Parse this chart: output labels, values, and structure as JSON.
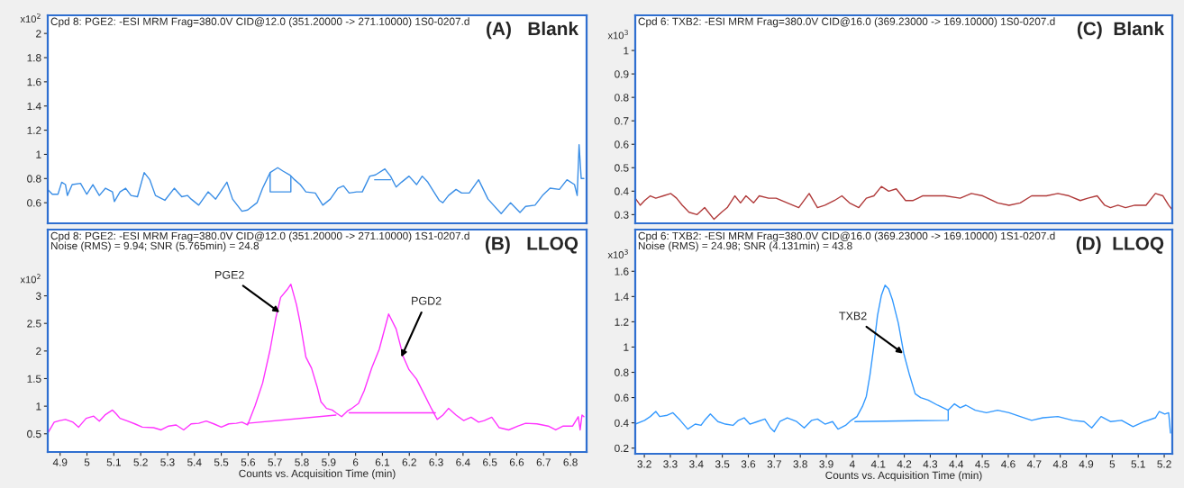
{
  "chart_data": [
    {
      "type": "line",
      "title": "(A)   Blank",
      "subtitle": "Cpd 8: PGE2: -ESI MRM Frag=380.0V CID@12.0 (351.20000 -> 271.10000) 1S0-0207.d",
      "ylabel": "x10$^{2}$",
      "xlim": [
        4.854,
        6.86
      ],
      "ylim": [
        0.43,
        2.15
      ],
      "yticks": [
        0.6,
        0.8,
        1,
        1.2,
        1.4,
        1.6,
        1.8,
        2
      ],
      "tick_labels": "y",
      "grid": false,
      "series": [
        {
          "color": "#3a8ee6",
          "x": [
            4.854,
            4.871,
            4.892,
            4.906,
            4.92,
            4.927,
            4.945,
            4.976,
            4.999,
            5.022,
            5.046,
            5.069,
            5.095,
            5.102,
            5.123,
            5.144,
            5.164,
            5.188,
            5.213,
            5.234,
            5.255,
            5.29,
            5.325,
            5.353,
            5.374,
            5.388,
            5.416,
            5.451,
            5.479,
            5.521,
            5.542,
            5.577,
            5.598,
            5.633,
            5.654,
            5.682,
            5.71,
            5.731,
            5.755,
            5.773,
            5.794,
            5.815,
            5.85,
            5.878,
            5.906,
            5.934,
            5.955,
            5.976,
            6.004,
            6.025,
            6.053,
            6.074,
            6.109,
            6.13,
            6.151,
            6.171,
            6.199,
            6.227,
            6.248,
            6.269,
            6.283,
            6.311,
            6.325,
            6.346,
            6.374,
            6.395,
            6.423,
            6.458,
            6.493,
            6.542,
            6.577,
            6.612,
            6.633,
            6.668,
            6.696,
            6.724,
            6.759,
            6.787,
            6.815,
            6.825,
            6.832,
            6.84,
            6.85
          ],
          "values": [
            0.71,
            0.67,
            0.67,
            0.77,
            0.75,
            0.66,
            0.75,
            0.76,
            0.67,
            0.75,
            0.66,
            0.72,
            0.69,
            0.61,
            0.69,
            0.72,
            0.66,
            0.65,
            0.85,
            0.79,
            0.66,
            0.62,
            0.72,
            0.65,
            0.66,
            0.63,
            0.58,
            0.69,
            0.63,
            0.77,
            0.63,
            0.53,
            0.54,
            0.6,
            0.72,
            0.85,
            0.89,
            0.86,
            0.83,
            0.79,
            0.75,
            0.69,
            0.68,
            0.58,
            0.63,
            0.72,
            0.74,
            0.68,
            0.69,
            0.69,
            0.82,
            0.83,
            0.88,
            0.82,
            0.73,
            0.77,
            0.82,
            0.75,
            0.82,
            0.77,
            0.72,
            0.62,
            0.6,
            0.66,
            0.71,
            0.68,
            0.68,
            0.79,
            0.63,
            0.51,
            0.6,
            0.52,
            0.57,
            0.58,
            0.66,
            0.72,
            0.71,
            0.79,
            0.75,
            0.66,
            1.08,
            0.8,
            0.8
          ]
        },
        {
          "color": "#3a8ee6",
          "x": [
            5.682,
            5.682,
            5.759,
            5.759
          ],
          "values": [
            0.85,
            0.69,
            0.69,
            0.82
          ]
        },
        {
          "color": "#3a8ee6",
          "x": [
            6.071,
            6.13
          ],
          "values": [
            0.79,
            0.79
          ]
        }
      ]
    },
    {
      "type": "line",
      "title": "(B)   LLOQ",
      "subtitle": "Cpd 8: PGE2: -ESI MRM Frag=380.0V CID@12.0 (351.20000 -> 271.10000) 1S1-0207.d\nNoise (RMS) = 9.94; SNR (5.765min) = 24.8",
      "ylabel": "x10$^{2}$",
      "xlabel": "Counts vs. Acquisition Time (min)",
      "xlim": [
        4.854,
        6.86
      ],
      "ylim": [
        0.17,
        4.2
      ],
      "xticks": [
        4.9,
        5,
        5.1,
        5.2,
        5.3,
        5.4,
        5.5,
        5.6,
        5.7,
        5.8,
        5.9,
        6,
        6.1,
        6.2,
        6.3,
        6.4,
        6.5,
        6.6,
        6.7,
        6.8
      ],
      "yticks": [
        0.5,
        1,
        1.5,
        2,
        2.5,
        3
      ],
      "grid": false,
      "annotations": [
        {
          "text": "PGE2",
          "x": 5.717,
          "y": 2.7
        },
        {
          "text": "PGD2",
          "x": 6.17,
          "y": 1.89
        }
      ],
      "series": [
        {
          "color": "#ff33ff",
          "x": [
            4.854,
            4.878,
            4.899,
            4.92,
            4.948,
            4.969,
            4.997,
            5.025,
            5.046,
            5.067,
            5.095,
            5.109,
            5.123,
            5.151,
            5.178,
            5.206,
            5.248,
            5.276,
            5.304,
            5.332,
            5.36,
            5.388,
            5.416,
            5.444,
            5.472,
            5.5,
            5.528,
            5.556,
            5.577,
            5.598,
            5.626,
            5.654,
            5.682,
            5.703,
            5.721,
            5.745,
            5.759,
            5.78,
            5.794,
            5.815,
            5.836,
            5.857,
            5.871,
            5.892,
            5.913,
            5.927,
            5.948,
            5.969,
            5.983,
            6.011,
            6.032,
            6.06,
            6.088,
            6.123,
            6.151,
            6.178,
            6.199,
            6.227,
            6.255,
            6.283,
            6.304,
            6.325,
            6.346,
            6.374,
            6.402,
            6.43,
            6.458,
            6.479,
            6.507,
            6.535,
            6.57,
            6.605,
            6.633,
            6.675,
            6.717,
            6.745,
            6.773,
            6.808,
            6.829,
            6.836,
            6.843,
            6.85
          ],
          "values": [
            0.51,
            0.71,
            0.74,
            0.76,
            0.71,
            0.62,
            0.78,
            0.82,
            0.73,
            0.84,
            0.93,
            0.86,
            0.78,
            0.73,
            0.68,
            0.62,
            0.61,
            0.57,
            0.64,
            0.66,
            0.57,
            0.68,
            0.69,
            0.73,
            0.68,
            0.62,
            0.68,
            0.69,
            0.71,
            0.66,
            1.01,
            1.42,
            2.03,
            2.6,
            2.97,
            3.11,
            3.21,
            2.84,
            2.5,
            1.89,
            1.69,
            1.35,
            1.08,
            0.96,
            0.93,
            0.88,
            0.81,
            0.91,
            0.95,
            1.05,
            1.28,
            1.69,
            2.03,
            2.67,
            2.4,
            1.89,
            1.66,
            1.49,
            1.22,
            0.95,
            0.76,
            0.84,
            0.96,
            0.84,
            0.74,
            0.8,
            0.71,
            0.74,
            0.8,
            0.61,
            0.57,
            0.64,
            0.69,
            0.68,
            0.64,
            0.57,
            0.64,
            0.64,
            0.81,
            0.57,
            0.84,
            0.81
          ]
        },
        {
          "color": "#ff33ff",
          "x": [
            5.598,
            5.927
          ],
          "values": [
            0.69,
            0.84
          ]
        },
        {
          "color": "#ff33ff",
          "x": [
            5.976,
            6.297
          ],
          "values": [
            0.88,
            0.88
          ]
        }
      ]
    },
    {
      "type": "line",
      "title": "(C)  Blank",
      "subtitle": "Cpd 6: TXB2: -ESI MRM Frag=380.0V CID@16.0 (369.23000 -> 169.10000) 1S0-0207.d",
      "ylabel": "x10$^{3}$",
      "xlim": [
        3.165,
        5.231
      ],
      "ylim": [
        0.263,
        1.15
      ],
      "yticks": [
        0.3,
        0.4,
        0.5,
        0.6,
        0.7,
        0.8,
        0.9,
        1
      ],
      "tick_labels": "y",
      "grid": false,
      "series": [
        {
          "color": "#b03a3a",
          "x": [
            3.165,
            3.184,
            3.201,
            3.223,
            3.244,
            3.273,
            3.302,
            3.324,
            3.346,
            3.372,
            3.403,
            3.432,
            3.468,
            3.497,
            3.519,
            3.548,
            3.57,
            3.591,
            3.62,
            3.642,
            3.678,
            3.707,
            3.75,
            3.794,
            3.834,
            3.866,
            3.895,
            3.931,
            3.96,
            3.989,
            4.025,
            4.054,
            4.083,
            4.112,
            4.14,
            4.169,
            4.205,
            4.234,
            4.27,
            4.314,
            4.357,
            4.415,
            4.458,
            4.502,
            4.559,
            4.603,
            4.646,
            4.69,
            4.747,
            4.791,
            4.834,
            4.877,
            4.906,
            4.942,
            4.971,
            4.993,
            5.022,
            5.051,
            5.087,
            5.13,
            5.166,
            5.195,
            5.217,
            5.231
          ],
          "values": [
            0.37,
            0.34,
            0.36,
            0.38,
            0.37,
            0.38,
            0.39,
            0.37,
            0.34,
            0.31,
            0.3,
            0.33,
            0.28,
            0.31,
            0.33,
            0.38,
            0.35,
            0.38,
            0.35,
            0.38,
            0.37,
            0.37,
            0.35,
            0.33,
            0.39,
            0.33,
            0.34,
            0.36,
            0.38,
            0.35,
            0.33,
            0.37,
            0.38,
            0.42,
            0.4,
            0.41,
            0.36,
            0.36,
            0.38,
            0.38,
            0.38,
            0.37,
            0.39,
            0.38,
            0.35,
            0.34,
            0.35,
            0.38,
            0.38,
            0.39,
            0.38,
            0.36,
            0.37,
            0.38,
            0.34,
            0.33,
            0.34,
            0.33,
            0.34,
            0.34,
            0.39,
            0.38,
            0.34,
            0.32
          ]
        }
      ]
    },
    {
      "type": "line",
      "title": "(D)  LLOQ",
      "subtitle": "Cpd 6: TXB2: -ESI MRM Frag=380.0V CID@16.0 (369.23000 -> 169.10000) 1S1-0207.d\nNoise (RMS) = 24.98; SNR (4.131min) = 43.8",
      "ylabel": "x10$^{3}$",
      "xlabel": "Counts vs. Acquisition Time (min)",
      "xlim": [
        3.165,
        5.231
      ],
      "ylim": [
        0.155,
        1.93
      ],
      "xticks": [
        3.2,
        3.3,
        3.4,
        3.5,
        3.6,
        3.7,
        3.8,
        3.9,
        4,
        4.1,
        4.2,
        4.3,
        4.4,
        4.5,
        4.6,
        4.7,
        4.8,
        4.9,
        5,
        5.1,
        5.2
      ],
      "yticks": [
        0.2,
        0.4,
        0.6,
        0.8,
        1,
        1.2,
        1.4,
        1.6
      ],
      "grid": false,
      "annotations": [
        {
          "text": "TXB2",
          "x": 4.195,
          "y": 0.95
        }
      ],
      "series": [
        {
          "color": "#3399ff",
          "x": [
            3.165,
            3.201,
            3.223,
            3.244,
            3.259,
            3.288,
            3.31,
            3.338,
            3.367,
            3.396,
            3.418,
            3.432,
            3.454,
            3.483,
            3.512,
            3.541,
            3.562,
            3.584,
            3.606,
            3.635,
            3.664,
            3.685,
            3.7,
            3.721,
            3.75,
            3.786,
            3.815,
            3.844,
            3.866,
            3.895,
            3.924,
            3.945,
            3.974,
            3.996,
            4.018,
            4.039,
            4.054,
            4.068,
            4.083,
            4.097,
            4.112,
            4.126,
            4.14,
            4.155,
            4.177,
            4.198,
            4.22,
            4.242,
            4.263,
            4.292,
            4.328,
            4.369,
            4.393,
            4.415,
            4.437,
            4.473,
            4.516,
            4.559,
            4.603,
            4.646,
            4.69,
            4.733,
            4.791,
            4.848,
            4.892,
            4.921,
            4.957,
            4.993,
            5.036,
            5.08,
            5.123,
            5.166,
            5.181,
            5.202,
            5.217,
            5.224
          ],
          "values": [
            0.39,
            0.42,
            0.45,
            0.49,
            0.45,
            0.46,
            0.48,
            0.42,
            0.35,
            0.39,
            0.38,
            0.42,
            0.47,
            0.41,
            0.39,
            0.38,
            0.42,
            0.44,
            0.39,
            0.41,
            0.43,
            0.36,
            0.33,
            0.41,
            0.44,
            0.41,
            0.36,
            0.42,
            0.43,
            0.39,
            0.41,
            0.35,
            0.38,
            0.42,
            0.45,
            0.53,
            0.61,
            0.78,
            1.01,
            1.25,
            1.41,
            1.49,
            1.46,
            1.37,
            1.19,
            0.95,
            0.78,
            0.63,
            0.6,
            0.58,
            0.54,
            0.5,
            0.55,
            0.52,
            0.54,
            0.5,
            0.48,
            0.5,
            0.48,
            0.45,
            0.42,
            0.44,
            0.45,
            0.42,
            0.41,
            0.36,
            0.45,
            0.41,
            0.42,
            0.37,
            0.41,
            0.44,
            0.49,
            0.47,
            0.48,
            0.32
          ]
        },
        {
          "color": "#3399ff",
          "x": [
            4.01,
            4.369,
            4.369
          ],
          "values": [
            0.41,
            0.42,
            0.5
          ]
        }
      ]
    }
  ]
}
